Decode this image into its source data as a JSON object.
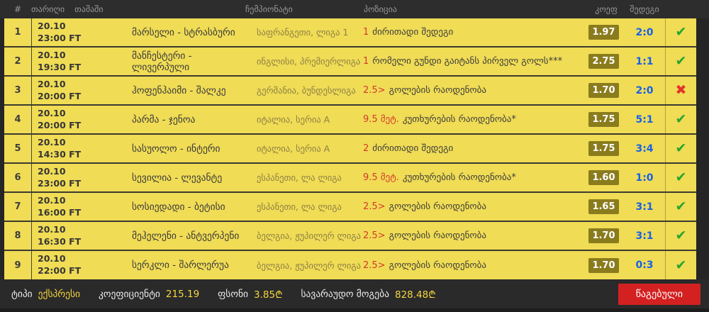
{
  "header": {
    "col_num": "#",
    "col_date": "თარიღი",
    "col_game": "თამაში",
    "col_champ": "ჩემპიონატი",
    "col_position": "პოზიცია",
    "col_coef": "კოეფ",
    "col_result": "შედეგი"
  },
  "rows": [
    {
      "num": "1",
      "date": "20.10",
      "time": "23:00 FT",
      "game": "მარსელი - სტრასბური",
      "championship": "საფრანგეთი, ლიგა 1",
      "pick": "1",
      "prediction": "ძირითადი შედეგი",
      "coef": "1.97",
      "result": "2:0",
      "status": "win"
    },
    {
      "num": "2",
      "date": "20.10",
      "time": "19:30 FT",
      "game": "მანჩესტერი - ლივერპული",
      "championship": "ინგლისი, პრემიერლიგა",
      "pick": "1",
      "prediction": "რომელი გუნდი გაიტანს პირველ გოლს***",
      "coef": "2.75",
      "result": "1:1",
      "status": "win"
    },
    {
      "num": "3",
      "date": "20.10",
      "time": "20:00 FT",
      "game": "ჰოფენჰაიმი - შალკე",
      "championship": "გერმანია, ბუნდესლიგა",
      "pick": "2.5>",
      "prediction": "გოლების რაოდენობა",
      "coef": "1.70",
      "result": "2:0",
      "status": "lose"
    },
    {
      "num": "4",
      "date": "20.10",
      "time": "20:00 FT",
      "game": "პარმა - ჯენოა",
      "championship": "იტალია, სერია A",
      "pick": "9.5 მეტ.",
      "prediction": "კუთხურების რაოდენობა*",
      "coef": "1.75",
      "result": "5:1",
      "status": "win"
    },
    {
      "num": "5",
      "date": "20.10",
      "time": "14:30 FT",
      "game": "სასუოლო - ინტერი",
      "championship": "იტალია, სერია A",
      "pick": "2",
      "prediction": "ძირითადი შედეგი",
      "coef": "1.75",
      "result": "3:4",
      "status": "win"
    },
    {
      "num": "6",
      "date": "20.10",
      "time": "23:00 FT",
      "game": "სევილია - ლევანტე",
      "championship": "ესპანეთი, ლა ლიგა",
      "pick": "9.5 მეტ.",
      "prediction": "კუთხურების რაოდენობა*",
      "coef": "1.60",
      "result": "1:0",
      "status": "win"
    },
    {
      "num": "7",
      "date": "20.10",
      "time": "16:00 FT",
      "game": "სოსიედადი - ბეტისი",
      "championship": "ესპანეთი, ლა ლიგა",
      "pick": "2.5>",
      "prediction": "გოლების რაოდენობა",
      "coef": "1.65",
      "result": "3:1",
      "status": "win"
    },
    {
      "num": "8",
      "date": "20.10",
      "time": "16:30 FT",
      "game": "მეჰელენი - ანტვერპენი",
      "championship": "ბელგია, ჟუპილერ ლიგა",
      "pick": "2.5>",
      "prediction": "გოლების რაოდენობა",
      "coef": "1.70",
      "result": "3:1",
      "status": "win"
    },
    {
      "num": "9",
      "date": "20.10",
      "time": "22:00 FT",
      "game": "სერკლი - შარლერუა",
      "championship": "ბელგია, ჟუპილერ ლიგა",
      "pick": "2.5>",
      "prediction": "გოლების რაოდენობა",
      "coef": "1.70",
      "result": "0:3",
      "status": "win"
    }
  ],
  "icons": {
    "win": "✔",
    "lose": "✖"
  },
  "footer": {
    "type_label": "ტიპი",
    "type_value": "ექსპრესი",
    "coef_label": "კოეფიციენტი",
    "coef_value": "215.19",
    "stake_label": "ფსონი",
    "stake_value": "3.85₾",
    "payout_label": "სავარაუდო მოგება",
    "payout_value": "828.48₾",
    "status_button": "წაგებული"
  },
  "colors": {
    "row_yellow": "#f0dc55",
    "win_green": "#27a52f",
    "lose_red": "#e3342b",
    "result_blue": "#1661e8",
    "pick_red": "#d43b2a",
    "odds_badge_olive": "#8a7b1d",
    "status_button_red": "#d32121",
    "footer_value_yellow": "#f5d63e"
  }
}
